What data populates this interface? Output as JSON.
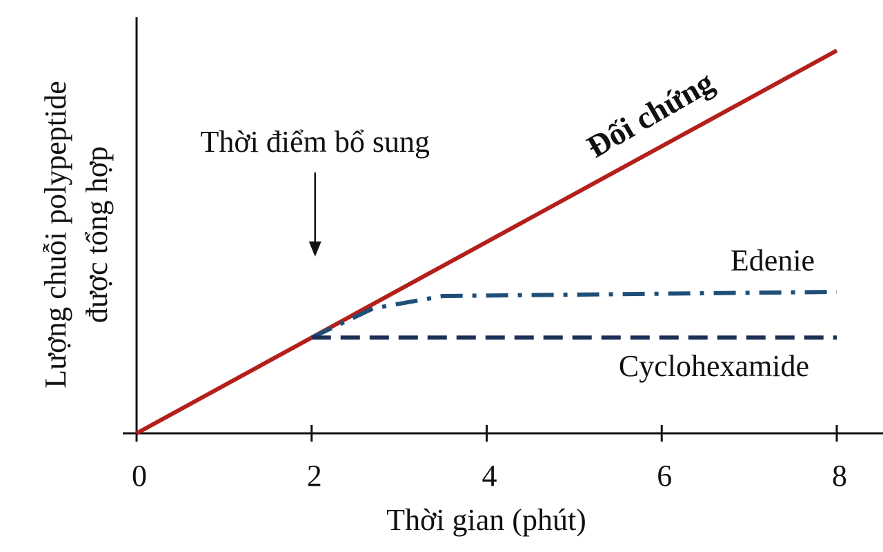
{
  "chart_data": {
    "type": "line",
    "xlabel": "Thời gian (phút)",
    "ylabel": [
      "Lượng chuỗi polypeptide",
      "được tổng hợp"
    ],
    "annotation": {
      "text": "Thời điểm bổ sung",
      "x": 2
    },
    "xlim": [
      0,
      8
    ],
    "xticks": [
      0,
      2,
      4,
      6,
      8
    ],
    "ylim": [
      0,
      100
    ],
    "series": [
      {
        "name": "Đối chứng",
        "color": "#b3201c",
        "dash": "solid",
        "x": [
          0,
          8
        ],
        "values": [
          0,
          92
        ]
      },
      {
        "name": "Edenie",
        "color": "#1f4e79",
        "dash": "dashdot",
        "x": [
          2,
          2.7,
          3.5,
          8
        ],
        "values": [
          23,
          30,
          33,
          34
        ]
      },
      {
        "name": "Cyclohexamide",
        "color": "#1b2f55",
        "dash": "dashed",
        "x": [
          2,
          8
        ],
        "values": [
          23,
          23
        ]
      }
    ]
  }
}
